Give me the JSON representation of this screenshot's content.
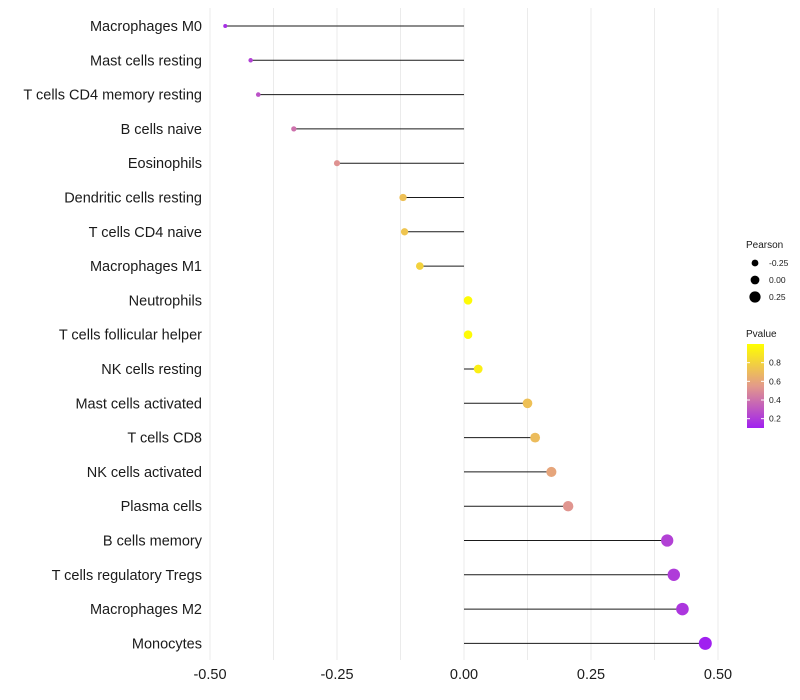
{
  "chart_data": {
    "type": "lollipop",
    "title": "",
    "xlabel": "",
    "ylabel": "",
    "xlim": [
      -0.55,
      0.55
    ],
    "x_ticks": [
      -0.5,
      -0.25,
      0.0,
      0.25,
      0.5
    ],
    "x_tick_labels": [
      "-0.50",
      "-0.25",
      "0.00",
      "0.25",
      "0.50"
    ],
    "categories": [
      "Macrophages M0",
      "Mast cells resting",
      "T cells CD4 memory resting",
      "B cells naive",
      "Eosinophils",
      "Dendritic cells resting",
      "T cells CD4 naive",
      "Macrophages M1",
      "Neutrophils",
      "T cells follicular helper",
      "NK cells resting",
      "Mast cells activated",
      "T cells CD8",
      "NK cells activated",
      "Plasma cells",
      "B cells memory",
      "T cells regulatory  Tregs ",
      "Macrophages M2",
      "Monocytes"
    ],
    "values": [
      -0.47,
      -0.42,
      -0.405,
      -0.335,
      -0.25,
      -0.12,
      -0.117,
      -0.087,
      0.008,
      0.008,
      0.028,
      0.125,
      0.14,
      0.172,
      0.205,
      0.4,
      0.413,
      0.43,
      0.475
    ],
    "pvalues": [
      0.15,
      0.22,
      0.28,
      0.4,
      0.52,
      0.72,
      0.74,
      0.8,
      0.98,
      0.98,
      0.93,
      0.72,
      0.7,
      0.6,
      0.53,
      0.22,
      0.2,
      0.18,
      0.1
    ],
    "legend": {
      "size_title": "Pearson",
      "size_labels": [
        "-0.25",
        "0.00",
        "0.25"
      ],
      "size_values": [
        -0.25,
        0.0,
        0.25
      ],
      "color_title": "Pvalue",
      "color_labels": [
        "0.8",
        "0.6",
        "0.4",
        "0.2"
      ],
      "color_values": [
        0.8,
        0.6,
        0.4,
        0.2
      ],
      "color_range": [
        0.1,
        1.0
      ],
      "color_low": "#a020f0",
      "color_mid": "#e39a8a",
      "color_high": "#ffff00",
      "placement": "right"
    }
  }
}
